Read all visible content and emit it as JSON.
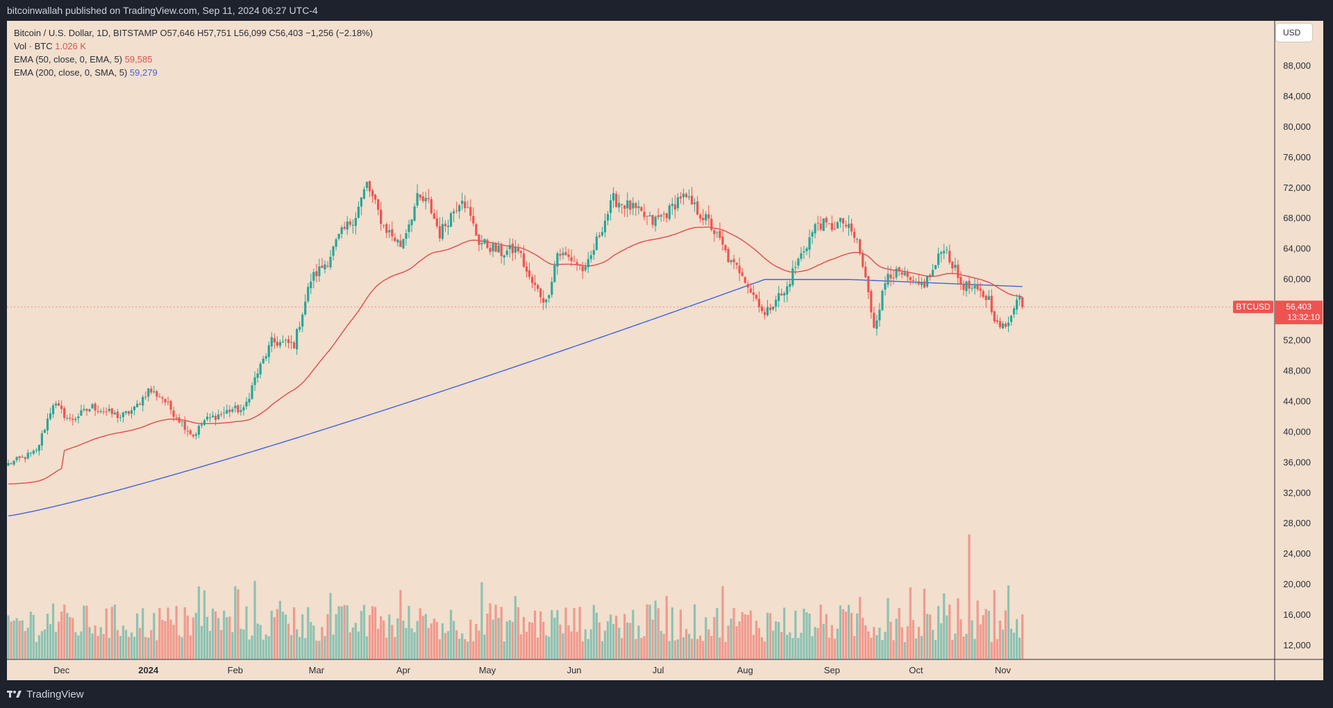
{
  "header": {
    "text": "bitcoinwallah published on TradingView.com, Sep 11, 2024 06:27 UTC-4"
  },
  "footer": {
    "logo_text": "TradingView"
  },
  "legend": {
    "title": "Bitcoin / U.S. Dollar, 1D, BITSTAMP",
    "ohlc": "O57,646 H57,751 L56,099 C56,403 −1,256 (−2.18%)",
    "vol_label": "Vol · BTC",
    "vol_value": "1.026 K",
    "ema50_label": "EMA (50, close, 0, EMA, 5)",
    "ema50_value": "59,585",
    "ema200_label": "EMA (200, close, 0, SMA, 5)",
    "ema200_value": "59,279"
  },
  "currency_button": "USD",
  "price_tag": {
    "symbol": "BTCUSD",
    "price": "56,403",
    "countdown": "13:32:10"
  },
  "colors": {
    "up": "#26a69a",
    "down": "#ef5350",
    "ema50": "#e0494f",
    "ema200": "#3d63dd",
    "background": "#f2dfcd"
  },
  "chart_data": {
    "type": "candlestick",
    "title": "Bitcoin / U.S. Dollar, 1D, BITSTAMP",
    "ylim": [
      10000,
      92000
    ],
    "y_ticks": [
      "88,000",
      "84,000",
      "80,000",
      "76,000",
      "72,000",
      "68,000",
      "64,000",
      "60,000",
      "56,000",
      "52,000",
      "48,000",
      "44,000",
      "40,000",
      "36,000",
      "32,000",
      "28,000",
      "24,000",
      "20,000",
      "16,000",
      "12,000"
    ],
    "y_tick_values": [
      88000,
      84000,
      80000,
      76000,
      72000,
      68000,
      64000,
      60000,
      56000,
      52000,
      48000,
      44000,
      40000,
      36000,
      32000,
      28000,
      24000,
      20000,
      16000,
      12000
    ],
    "x_ticks": [
      {
        "label": "Dec",
        "day": 19
      },
      {
        "label": "2024",
        "day": 50
      },
      {
        "label": "Feb",
        "day": 81
      },
      {
        "label": "Mar",
        "day": 110
      },
      {
        "label": "Apr",
        "day": 141
      },
      {
        "label": "May",
        "day": 171
      },
      {
        "label": "Jun",
        "day": 202
      },
      {
        "label": "Jul",
        "day": 232
      },
      {
        "label": "Aug",
        "day": 263
      },
      {
        "label": "Sep",
        "day": 294
      },
      {
        "label": "Oct",
        "day": 324
      },
      {
        "label": "Nov",
        "day": 355
      }
    ],
    "last_price": 56403,
    "keypoints": [
      [
        0,
        35800
      ],
      [
        10,
        37400
      ],
      [
        16,
        43800
      ],
      [
        22,
        41500
      ],
      [
        30,
        43300
      ],
      [
        40,
        42000
      ],
      [
        45,
        43000
      ],
      [
        50,
        45500
      ],
      [
        55,
        44500
      ],
      [
        59,
        42500
      ],
      [
        66,
        39500
      ],
      [
        70,
        41500
      ],
      [
        80,
        43000
      ],
      [
        84,
        42800
      ],
      [
        88,
        47000
      ],
      [
        94,
        51800
      ],
      [
        102,
        51500
      ],
      [
        108,
        60000
      ],
      [
        114,
        62500
      ],
      [
        118,
        65500
      ],
      [
        124,
        68500
      ],
      [
        128,
        72500
      ],
      [
        134,
        67000
      ],
      [
        140,
        64500
      ],
      [
        146,
        70500
      ],
      [
        150,
        70000
      ],
      [
        154,
        66000
      ],
      [
        162,
        71000
      ],
      [
        168,
        65000
      ],
      [
        176,
        63500
      ],
      [
        182,
        64000
      ],
      [
        186,
        60000
      ],
      [
        192,
        57000
      ],
      [
        196,
        63500
      ],
      [
        202,
        62500
      ],
      [
        206,
        61000
      ],
      [
        212,
        67000
      ],
      [
        216,
        70500
      ],
      [
        222,
        69500
      ],
      [
        230,
        67500
      ],
      [
        236,
        69000
      ],
      [
        240,
        71000
      ],
      [
        244,
        69800
      ],
      [
        250,
        67500
      ],
      [
        254,
        65000
      ],
      [
        258,
        62000
      ],
      [
        262,
        61000
      ],
      [
        265,
        58500
      ],
      [
        268,
        57000
      ],
      [
        270,
        55200
      ],
      [
        274,
        57700
      ],
      [
        277,
        58000
      ],
      [
        280,
        61000
      ],
      [
        284,
        64000
      ],
      [
        289,
        67500
      ],
      [
        293,
        66800
      ],
      [
        298,
        67500
      ],
      [
        303,
        65000
      ],
      [
        306,
        60000
      ],
      [
        309,
        54000
      ],
      [
        311,
        56500
      ],
      [
        314,
        61000
      ],
      [
        319,
        60500
      ],
      [
        324,
        59000
      ],
      [
        327,
        59500
      ],
      [
        330,
        61000
      ],
      [
        334,
        64500
      ],
      [
        337,
        62000
      ],
      [
        340,
        59500
      ],
      [
        345,
        58500
      ],
      [
        350,
        57500
      ],
      [
        353,
        54000
      ],
      [
        356,
        53600
      ],
      [
        359,
        56800
      ],
      [
        361,
        57650
      ],
      [
        362,
        56403
      ]
    ]
  }
}
